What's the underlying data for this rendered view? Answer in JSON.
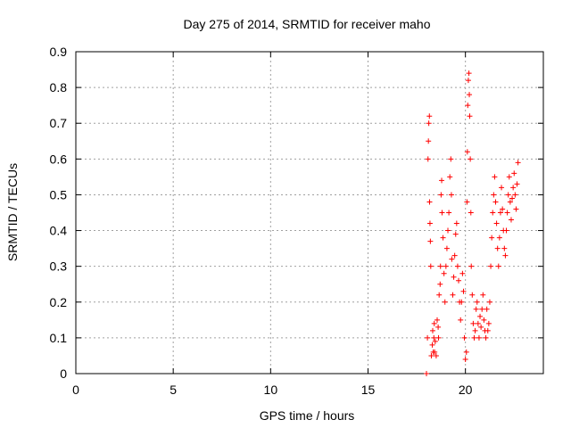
{
  "chart_data": {
    "type": "scatter",
    "title": "Day 275 of 2014, SRMTID for receiver maho",
    "xlabel": "GPS time / hours",
    "ylabel": "SRMTID / TECUs",
    "xlim": [
      0,
      24
    ],
    "ylim": [
      0,
      0.9
    ],
    "xticks": [
      "0",
      "5",
      "10",
      "15",
      "20"
    ],
    "yticks": [
      "0",
      "0.1",
      "0.2",
      "0.3",
      "0.4",
      "0.5",
      "0.6",
      "0.7",
      "0.8",
      "0.9"
    ],
    "grid": true,
    "marker": "+",
    "color": "#ff0000",
    "series": [
      {
        "points": [
          [
            18.0,
            0.0
          ],
          [
            18.05,
            0.1
          ],
          [
            18.08,
            0.6
          ],
          [
            18.1,
            0.65
          ],
          [
            18.12,
            0.7
          ],
          [
            18.15,
            0.72
          ],
          [
            18.16,
            0.48
          ],
          [
            18.18,
            0.42
          ],
          [
            18.2,
            0.37
          ],
          [
            18.22,
            0.3
          ],
          [
            18.25,
            0.05
          ],
          [
            18.3,
            0.08
          ],
          [
            18.32,
            0.12
          ],
          [
            18.35,
            0.06
          ],
          [
            18.38,
            0.1
          ],
          [
            18.4,
            0.14
          ],
          [
            18.42,
            0.06
          ],
          [
            18.45,
            0.09
          ],
          [
            18.5,
            0.05
          ],
          [
            18.55,
            0.15
          ],
          [
            18.6,
            0.13
          ],
          [
            18.62,
            0.1
          ],
          [
            18.65,
            0.22
          ],
          [
            18.7,
            0.25
          ],
          [
            18.72,
            0.3
          ],
          [
            18.75,
            0.5
          ],
          [
            18.78,
            0.54
          ],
          [
            18.8,
            0.45
          ],
          [
            18.85,
            0.38
          ],
          [
            18.9,
            0.28
          ],
          [
            18.95,
            0.2
          ],
          [
            19.0,
            0.3
          ],
          [
            19.05,
            0.35
          ],
          [
            19.1,
            0.4
          ],
          [
            19.15,
            0.45
          ],
          [
            19.2,
            0.55
          ],
          [
            19.25,
            0.6
          ],
          [
            19.28,
            0.5
          ],
          [
            19.3,
            0.32
          ],
          [
            19.35,
            0.22
          ],
          [
            19.4,
            0.27
          ],
          [
            19.45,
            0.33
          ],
          [
            19.5,
            0.39
          ],
          [
            19.55,
            0.42
          ],
          [
            19.6,
            0.3
          ],
          [
            19.65,
            0.26
          ],
          [
            19.7,
            0.2
          ],
          [
            19.75,
            0.15
          ],
          [
            19.8,
            0.2
          ],
          [
            19.85,
            0.28
          ],
          [
            19.9,
            0.23
          ],
          [
            19.95,
            0.1
          ],
          [
            20.0,
            0.04
          ],
          [
            20.05,
            0.06
          ],
          [
            20.08,
            0.48
          ],
          [
            20.1,
            0.62
          ],
          [
            20.12,
            0.75
          ],
          [
            20.15,
            0.82
          ],
          [
            20.18,
            0.84
          ],
          [
            20.2,
            0.78
          ],
          [
            20.22,
            0.72
          ],
          [
            20.25,
            0.6
          ],
          [
            20.28,
            0.45
          ],
          [
            20.3,
            0.3
          ],
          [
            20.35,
            0.22
          ],
          [
            20.4,
            0.14
          ],
          [
            20.45,
            0.1
          ],
          [
            20.5,
            0.12
          ],
          [
            20.55,
            0.18
          ],
          [
            20.6,
            0.2
          ],
          [
            20.65,
            0.14
          ],
          [
            20.7,
            0.1
          ],
          [
            20.75,
            0.16
          ],
          [
            20.8,
            0.13
          ],
          [
            20.85,
            0.18
          ],
          [
            20.9,
            0.22
          ],
          [
            20.95,
            0.15
          ],
          [
            21.0,
            0.12
          ],
          [
            21.05,
            0.1
          ],
          [
            21.1,
            0.18
          ],
          [
            21.15,
            0.12
          ],
          [
            21.2,
            0.14
          ],
          [
            21.25,
            0.2
          ],
          [
            21.3,
            0.3
          ],
          [
            21.35,
            0.38
          ],
          [
            21.4,
            0.45
          ],
          [
            21.45,
            0.5
          ],
          [
            21.5,
            0.55
          ],
          [
            21.55,
            0.48
          ],
          [
            21.6,
            0.42
          ],
          [
            21.65,
            0.35
          ],
          [
            21.7,
            0.3
          ],
          [
            21.75,
            0.38
          ],
          [
            21.8,
            0.45
          ],
          [
            21.85,
            0.52
          ],
          [
            21.9,
            0.46
          ],
          [
            21.95,
            0.4
          ],
          [
            22.0,
            0.35
          ],
          [
            22.05,
            0.33
          ],
          [
            22.1,
            0.4
          ],
          [
            22.15,
            0.45
          ],
          [
            22.2,
            0.5
          ],
          [
            22.25,
            0.55
          ],
          [
            22.3,
            0.48
          ],
          [
            22.35,
            0.43
          ],
          [
            22.4,
            0.49
          ],
          [
            22.45,
            0.52
          ],
          [
            22.5,
            0.56
          ],
          [
            22.55,
            0.5
          ],
          [
            22.6,
            0.46
          ],
          [
            22.65,
            0.53
          ],
          [
            22.7,
            0.59
          ]
        ]
      }
    ]
  }
}
